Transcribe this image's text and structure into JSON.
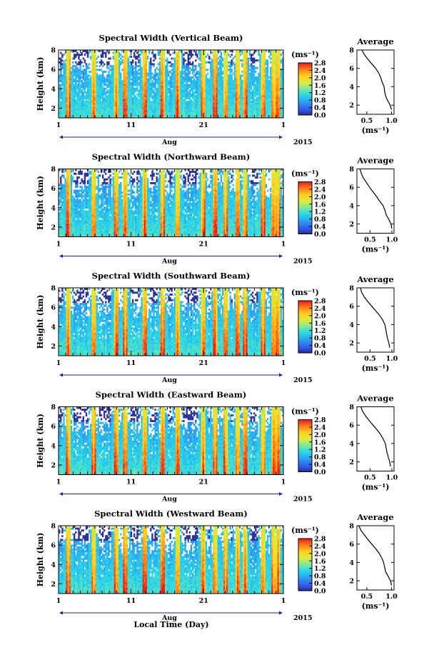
{
  "figure": {
    "colorbar_unit": "(ms⁻¹)",
    "avg_title": "Average",
    "avg_xlabel": "(ms⁻¹)",
    "ylabel": "Height (km)",
    "date_axis_label": "Aug",
    "year_label": "2015",
    "xlabel": "Local Time (Day)"
  },
  "chart_data": [
    {
      "type": "heatmap",
      "title": "Spectral Width (Vertical Beam)",
      "ylabel": "Height (km)",
      "ylim": [
        1,
        8
      ],
      "y_ticks": [
        "2",
        "4",
        "6",
        "8"
      ],
      "xlim_days": [
        1,
        32
      ],
      "x_ticks": [
        "1",
        "11",
        "21",
        "1"
      ],
      "date_label": "Aug",
      "year": "2015",
      "colorbar_ticks": [
        "0.0",
        "0.4",
        "0.8",
        "1.2",
        "1.6",
        "2.0",
        "2.4",
        "2.8"
      ],
      "colorbar_range": [
        0,
        2.8
      ],
      "average_profile": {
        "title": "Average",
        "xlabel": "(ms⁻¹)",
        "x_ticks": [
          "0.5",
          "1.0"
        ],
        "xlim": [
          0.3,
          1.05
        ],
        "height": [
          1.5,
          2,
          2.5,
          3,
          3.5,
          4,
          4.5,
          5,
          5.5,
          6,
          6.5,
          7,
          7.5,
          8
        ],
        "width": [
          1.0,
          0.97,
          0.92,
          0.88,
          0.86,
          0.85,
          0.81,
          0.78,
          0.74,
          0.68,
          0.6,
          0.52,
          0.45,
          0.4
        ]
      }
    },
    {
      "type": "heatmap",
      "title": "Spectral Width (Northward Beam)",
      "ylabel": "Height (km)",
      "ylim": [
        1,
        8
      ],
      "y_ticks": [
        "2",
        "4",
        "6",
        "8"
      ],
      "xlim_days": [
        1,
        32
      ],
      "x_ticks": [
        "1",
        "11",
        "21",
        "1"
      ],
      "date_label": "Aug",
      "year": "2015",
      "colorbar_ticks": [
        "0.0",
        "0.4",
        "0.8",
        "1.2",
        "1.6",
        "2.0",
        "2.4",
        "2.8"
      ],
      "colorbar_range": [
        0,
        2.8
      ],
      "average_profile": {
        "title": "Average",
        "xlabel": "(ms⁻¹)",
        "x_ticks": [
          "0.5",
          "1.0"
        ],
        "xlim": [
          0.2,
          1.05
        ],
        "height": [
          1.5,
          2,
          2.5,
          3,
          3.5,
          4,
          4.5,
          5,
          5.5,
          6,
          6.5,
          7,
          7.5,
          8
        ],
        "width": [
          1.0,
          0.98,
          0.93,
          0.87,
          0.84,
          0.8,
          0.72,
          0.65,
          0.57,
          0.49,
          0.42,
          0.35,
          0.3,
          0.27
        ]
      }
    },
    {
      "type": "heatmap",
      "title": "Spectral Width (Southward Beam)",
      "ylabel": "Height (km)",
      "ylim": [
        1,
        8
      ],
      "y_ticks": [
        "2",
        "4",
        "6",
        "8"
      ],
      "xlim_days": [
        1,
        32
      ],
      "x_ticks": [
        "1",
        "11",
        "21",
        "1"
      ],
      "date_label": "Aug",
      "year": "2015",
      "colorbar_ticks": [
        "0.0",
        "0.4",
        "0.8",
        "1.2",
        "1.6",
        "2.0",
        "2.4",
        "2.8"
      ],
      "colorbar_range": [
        0,
        2.8
      ],
      "average_profile": {
        "title": "Average",
        "xlabel": "(ms⁻¹)",
        "x_ticks": [
          "0.5",
          "1.0"
        ],
        "xlim": [
          0.2,
          1.05
        ],
        "height": [
          1.5,
          2,
          2.5,
          3,
          3.5,
          4,
          4.5,
          5,
          5.5,
          6,
          6.5,
          7,
          7.5,
          8
        ],
        "width": [
          0.95,
          0.93,
          0.9,
          0.88,
          0.86,
          0.84,
          0.79,
          0.72,
          0.63,
          0.54,
          0.45,
          0.37,
          0.31,
          0.28
        ]
      }
    },
    {
      "type": "heatmap",
      "title": "Spectral Width (Eastward Beam)",
      "ylabel": "Height (km)",
      "ylim": [
        1,
        8
      ],
      "y_ticks": [
        "2",
        "4",
        "6",
        "8"
      ],
      "xlim_days": [
        1,
        32
      ],
      "x_ticks": [
        "1",
        "11",
        "21",
        "1"
      ],
      "date_label": "Aug",
      "year": "2015",
      "colorbar_ticks": [
        "0.0",
        "0.4",
        "0.8",
        "1.2",
        "1.6",
        "2.0",
        "2.4",
        "2.8"
      ],
      "colorbar_range": [
        0,
        2.8
      ],
      "average_profile": {
        "title": "Average",
        "xlabel": "(ms⁻¹)",
        "x_ticks": [
          "0.5",
          "1.0"
        ],
        "xlim": [
          0.2,
          1.05
        ],
        "height": [
          1.5,
          2,
          2.5,
          3,
          3.5,
          4,
          4.5,
          5,
          5.5,
          6,
          6.5,
          7,
          7.5,
          8
        ],
        "width": [
          0.97,
          0.95,
          0.92,
          0.89,
          0.87,
          0.85,
          0.8,
          0.74,
          0.66,
          0.57,
          0.48,
          0.4,
          0.33,
          0.29
        ]
      }
    },
    {
      "type": "heatmap",
      "title": "Spectral Width (Westward Beam)",
      "ylabel": "Height (km)",
      "ylim": [
        1,
        8
      ],
      "y_ticks": [
        "2",
        "4",
        "6",
        "8"
      ],
      "xlim_days": [
        1,
        32
      ],
      "x_ticks": [
        "1",
        "11",
        "21",
        "1"
      ],
      "date_label": "Aug",
      "year": "2015",
      "colorbar_ticks": [
        "0.0",
        "0.4",
        "0.8",
        "1.2",
        "1.6",
        "2.0",
        "2.4",
        "2.8"
      ],
      "colorbar_range": [
        0,
        2.8
      ],
      "average_profile": {
        "title": "Average",
        "xlabel": "(ms⁻¹)",
        "x_ticks": [
          "0.5",
          "1.0"
        ],
        "xlim": [
          0.3,
          1.05
        ],
        "height": [
          1.5,
          2,
          2.5,
          3,
          3.5,
          4,
          4.5,
          5,
          5.5,
          6,
          6.5,
          7,
          7.5,
          8
        ],
        "width": [
          1.0,
          0.98,
          0.93,
          0.88,
          0.86,
          0.84,
          0.8,
          0.75,
          0.68,
          0.6,
          0.52,
          0.45,
          0.38,
          0.34
        ]
      }
    }
  ]
}
